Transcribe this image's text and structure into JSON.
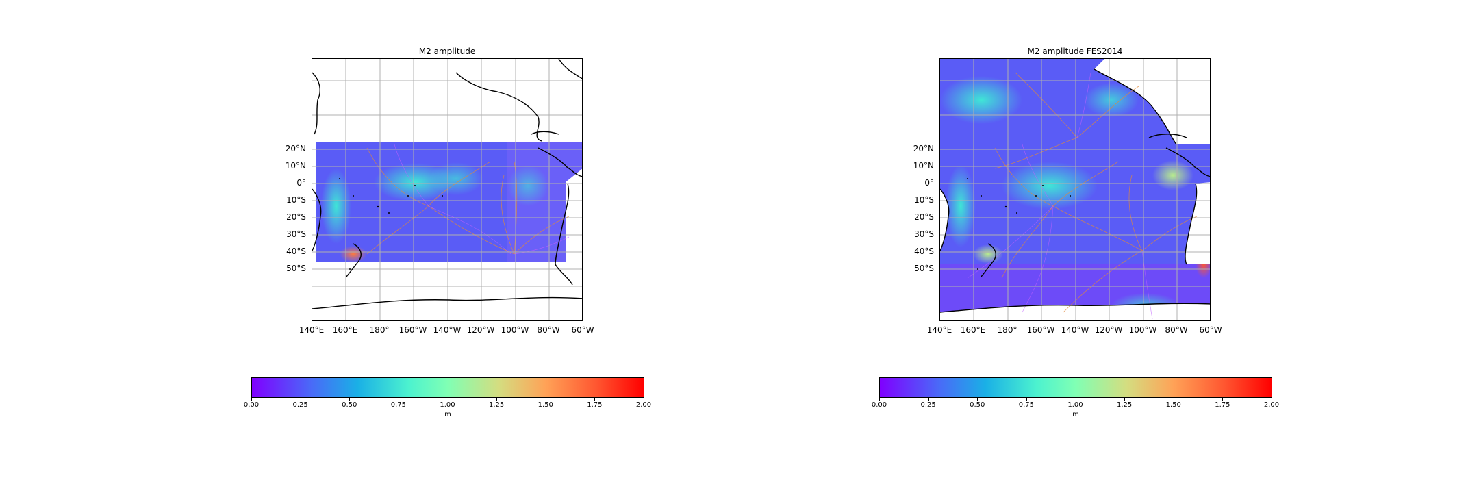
{
  "maps": [
    {
      "title": "M2 amplitude",
      "lat_labels": [
        "20°N",
        "10°N",
        "0°",
        "10°S",
        "20°S",
        "30°S",
        "40°S",
        "50°S"
      ],
      "lon_labels": [
        "140°E",
        "160°E",
        "180°",
        "160°W",
        "140°W",
        "120°W",
        "100°W",
        "80°W",
        "60°W"
      ],
      "colorbar": {
        "ticks": [
          "0.00",
          "0.25",
          "0.50",
          "0.75",
          "1.00",
          "1.25",
          "1.50",
          "1.75",
          "2.00"
        ],
        "label": "m"
      }
    },
    {
      "title": "M2 amplitude FES2014",
      "lat_labels": [
        "20°N",
        "10°N",
        "0°",
        "10°S",
        "20°S",
        "30°S",
        "40°S",
        "50°S"
      ],
      "lon_labels": [
        "140°E",
        "160°E",
        "180°",
        "160°W",
        "140°W",
        "120°W",
        "100°W",
        "80°W",
        "60°W"
      ],
      "colorbar": {
        "ticks": [
          "0.00",
          "0.25",
          "0.50",
          "0.75",
          "1.00",
          "1.25",
          "1.50",
          "1.75",
          "2.00"
        ],
        "label": "m"
      }
    }
  ],
  "colors": {
    "min": "#8000ff",
    "max": "#ff0000",
    "gridline": "#b0b0b0",
    "coast": "#000000"
  }
}
